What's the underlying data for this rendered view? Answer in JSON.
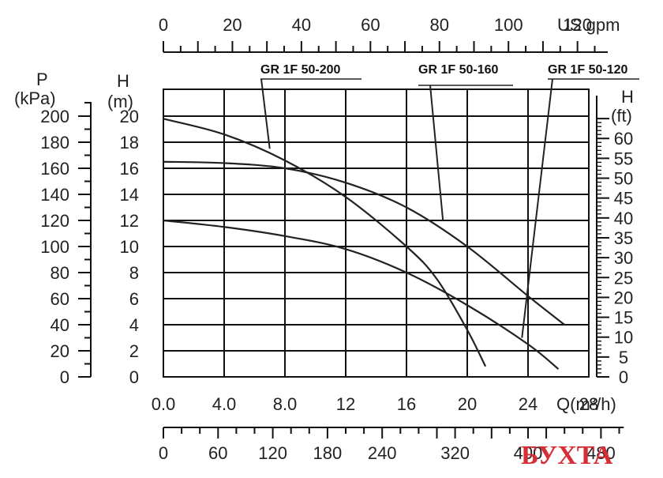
{
  "chart_data": {
    "type": "line",
    "x": {
      "label": "Q(m³/h)",
      "ticks": [
        "0.0",
        "4.0",
        "8.0",
        "12",
        "16",
        "20",
        "24",
        "28"
      ],
      "range": [
        0,
        28
      ]
    },
    "x_top": {
      "label": "US gpm",
      "ticks": [
        "0",
        "20",
        "40",
        "60",
        "80",
        "100",
        "120"
      ],
      "range": [
        0,
        120
      ]
    },
    "x_bottom_lpm": {
      "ticks": [
        "0",
        "60",
        "120",
        "180",
        "240",
        "320",
        "400",
        "480"
      ],
      "range": [
        0,
        480
      ]
    },
    "y": {
      "label_line1": "H",
      "label_line2": "(m)",
      "ticks": [
        "0",
        "2",
        "4",
        "6",
        "8",
        "10",
        "12",
        "14",
        "16",
        "18",
        "20"
      ],
      "range": [
        0,
        20
      ]
    },
    "y_pressure": {
      "label_line1": "P",
      "label_line2": "(kPa)",
      "ticks": [
        "0",
        "20",
        "40",
        "60",
        "80",
        "100",
        "120",
        "140",
        "160",
        "180",
        "200"
      ],
      "range": [
        0,
        200
      ]
    },
    "y_feet": {
      "label_line1": "H",
      "label_line2": "(ft)",
      "ticks": [
        "0",
        "5",
        "10",
        "15",
        "20",
        "25",
        "30",
        "35",
        "40",
        "45",
        "50",
        "55",
        "60"
      ],
      "range": [
        0,
        65.6
      ]
    },
    "series": [
      {
        "name": "GR 1F 50-200",
        "points": [
          [
            0,
            19.8
          ],
          [
            4,
            18.6
          ],
          [
            8,
            16.6
          ],
          [
            12,
            13.8
          ],
          [
            16,
            10.0
          ],
          [
            18,
            7.5
          ],
          [
            20,
            3.6
          ],
          [
            21.2,
            0.8
          ]
        ]
      },
      {
        "name": "GR 1F 50-160",
        "points": [
          [
            0,
            16.5
          ],
          [
            4,
            16.4
          ],
          [
            8,
            16.0
          ],
          [
            12,
            14.9
          ],
          [
            16,
            13.0
          ],
          [
            20,
            10.0
          ],
          [
            24,
            6.2
          ],
          [
            26.4,
            4.0
          ]
        ]
      },
      {
        "name": "GR 1F 50-120",
        "points": [
          [
            0,
            12.0
          ],
          [
            4,
            11.5
          ],
          [
            8,
            10.8
          ],
          [
            12,
            9.8
          ],
          [
            16,
            8.0
          ],
          [
            20,
            5.5
          ],
          [
            24,
            2.5
          ],
          [
            26,
            0.6
          ]
        ]
      }
    ]
  },
  "watermark": "БУХТА"
}
